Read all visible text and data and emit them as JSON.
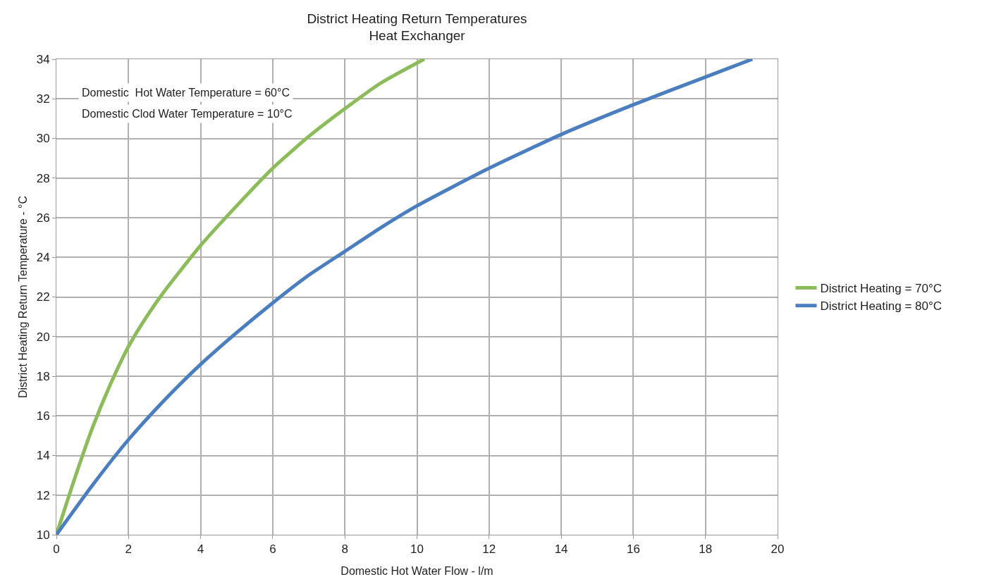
{
  "chart_data": {
    "type": "line",
    "title": "District Heating Return Temperatures",
    "subtitle": "Heat Exchanger",
    "xlabel": "Domestic Hot Water Flow - l/m",
    "ylabel": "District Heating Return Temperature - °C",
    "annotations": [
      "Domestic  Hot Water Temperature = 60°C",
      "Domestic Clod Water Temperature = 10°C"
    ],
    "xlim": [
      0,
      20
    ],
    "xticks": [
      0,
      2,
      4,
      6,
      8,
      10,
      12,
      14,
      16,
      18,
      20
    ],
    "ylim": [
      10,
      34
    ],
    "yticks": [
      10,
      12,
      14,
      16,
      18,
      20,
      22,
      24,
      26,
      28,
      30,
      32,
      34
    ],
    "grid": true,
    "legend": "right",
    "marker": "none",
    "line_style": "solid",
    "series": [
      {
        "name": "District Heating = 70°C",
        "color": "#8cbb5a",
        "x": [
          0,
          0.5,
          1,
          1.5,
          2,
          2.5,
          3,
          4,
          5,
          6,
          7,
          8,
          9,
          10.2
        ],
        "values": [
          10,
          12.8,
          15.4,
          17.6,
          19.5,
          21,
          22.3,
          24.6,
          26.6,
          28.5,
          30.1,
          31.5,
          32.8,
          34
        ]
      },
      {
        "name": "District Heating = 80°C",
        "color": "#4a7ebf",
        "x": [
          0,
          1,
          2,
          3,
          4,
          5,
          6,
          7,
          8,
          9,
          10,
          12,
          14,
          16,
          18,
          19.3
        ],
        "values": [
          10,
          12.5,
          14.8,
          16.8,
          18.6,
          20.2,
          21.7,
          23.1,
          24.3,
          25.5,
          26.6,
          28.5,
          30.2,
          31.7,
          33.1,
          34
        ]
      }
    ]
  }
}
